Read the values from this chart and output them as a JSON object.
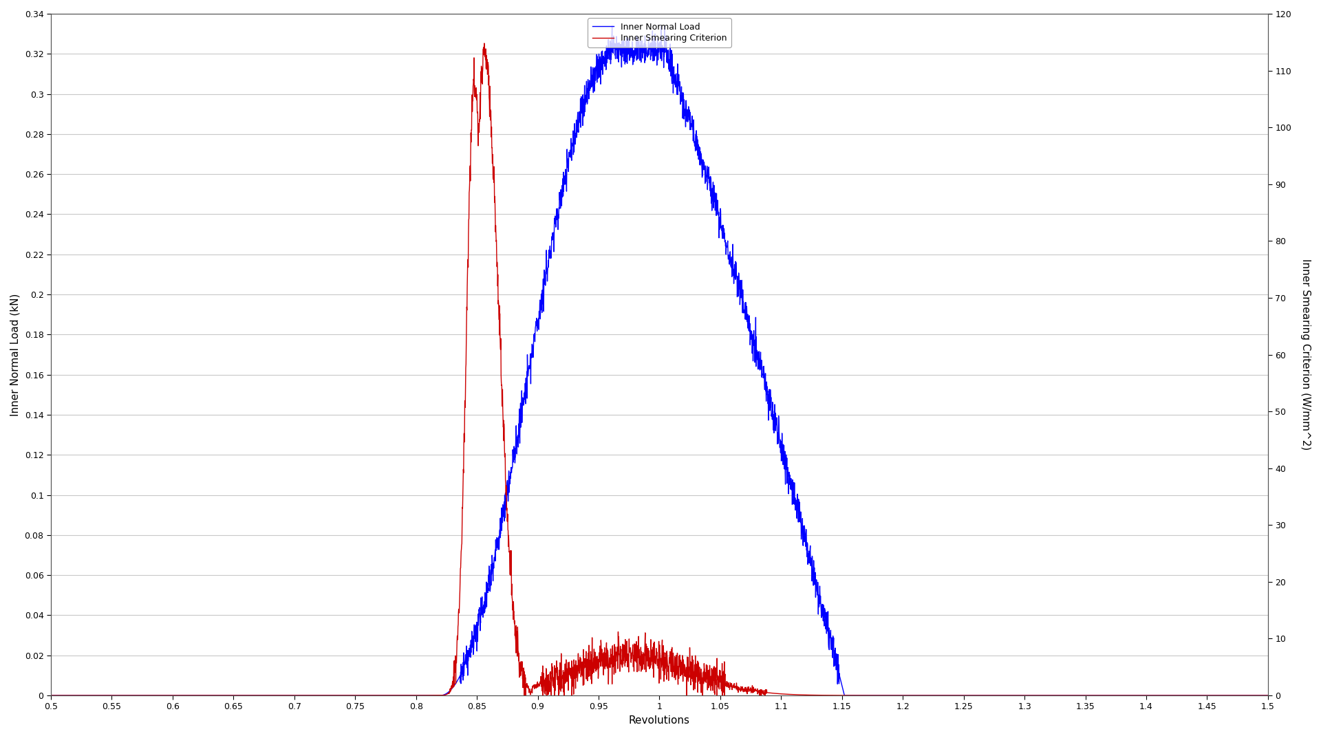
{
  "title": "",
  "xlabel": "Revolutions",
  "ylabel_left": "Inner Normal Load (kN)",
  "ylabel_right": "Inner Smearing Criterion (W/mm^2)",
  "legend_blue": "Inner Normal Load",
  "legend_red": "Inner Smearing Criterion",
  "xlim": [
    0.5,
    1.5
  ],
  "ylim_left": [
    0,
    0.34
  ],
  "ylim_right": [
    0,
    120
  ],
  "xticks": [
    0.5,
    0.55,
    0.6,
    0.65,
    0.7,
    0.75,
    0.8,
    0.85,
    0.9,
    0.95,
    1.0,
    1.05,
    1.1,
    1.15,
    1.2,
    1.25,
    1.3,
    1.35,
    1.4,
    1.45,
    1.5
  ],
  "yticks_left": [
    0,
    0.02,
    0.04,
    0.06,
    0.08,
    0.1,
    0.12,
    0.14,
    0.16,
    0.18,
    0.2,
    0.22,
    0.24,
    0.26,
    0.28,
    0.3,
    0.32,
    0.34
  ],
  "yticks_right": [
    0,
    10,
    20,
    30,
    40,
    50,
    60,
    70,
    80,
    90,
    100,
    110,
    120
  ],
  "blue_color": "#0000ff",
  "red_color": "#cc0000",
  "grid_color": "#c8c8c8",
  "background_color": "#ffffff",
  "line_width": 1.0
}
